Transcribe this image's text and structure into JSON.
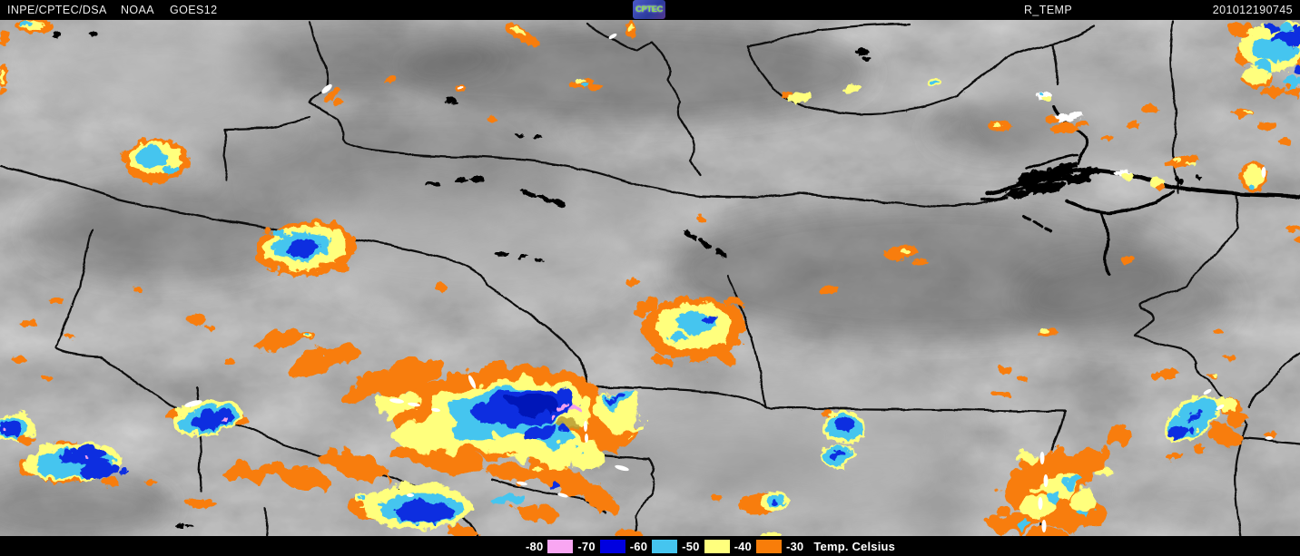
{
  "header": {
    "agency": "INPE/CPTEC/DSA",
    "network": "NOAA",
    "satellite": "GOES12",
    "logo": "CPTEC",
    "product": "R_TEMP",
    "timestamp": "201012190745"
  },
  "legend": {
    "caption": "Temp. Celsius",
    "entries": [
      {
        "label": "-80",
        "swatch": "#f9a6f2"
      },
      {
        "label": "-70",
        "swatch": "#0000e0"
      },
      {
        "label": "-60",
        "swatch": "#45c5ef"
      },
      {
        "label": "-50",
        "swatch": "#ffff7d"
      },
      {
        "label": "-40",
        "swatch": "#f87d09"
      },
      {
        "label": "-30",
        "swatch": null
      }
    ]
  },
  "map": {
    "type": "enhanced-infrared-satellite-image",
    "palette": {
      "minus30_orange": "#f87d09",
      "minus40_yellow": "#ffff7d",
      "minus50_cyan": "#45c5ef",
      "minus60_blue": "#0a2fe0",
      "deep_blue": "#0018b8",
      "minus70_pink": "#f2a0ee",
      "overshoot_white": "#ffffff",
      "border_black": "#0b0b0b",
      "cloud_gray_base": "#7c7c7c"
    }
  }
}
